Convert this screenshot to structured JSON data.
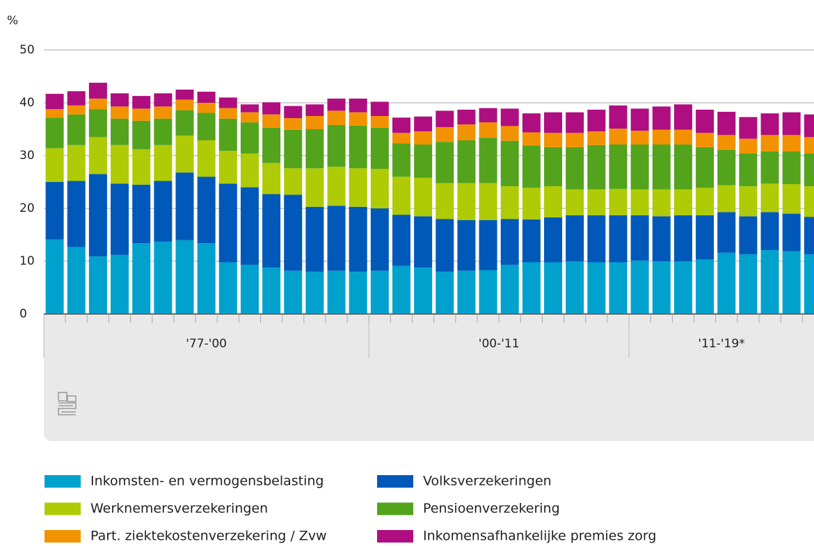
{
  "chart_data": {
    "type": "stacked-bar",
    "y_unit": "%",
    "categories": [
      null,
      null,
      null,
      null,
      null,
      null,
      null,
      null,
      null,
      null,
      null,
      null,
      null,
      null,
      null,
      null,
      null,
      null,
      null,
      null,
      null,
      null,
      null,
      null,
      null,
      null,
      null,
      null,
      null,
      null,
      null,
      null,
      null,
      null,
      null,
      null
    ],
    "groups": [
      {
        "label": "'77-'00",
        "size": 15
      },
      {
        "label": "'00-'11",
        "size": 12
      },
      {
        "label": "'11-'19*",
        "size": 9
      }
    ],
    "ylim": [
      0,
      50
    ],
    "yticks": [
      0,
      10,
      20,
      30,
      40,
      50
    ],
    "grid": true,
    "series": [
      {
        "name": "Inkomsten- en vermogensbelasting",
        "color": "#00a1cd",
        "values": [
          14.1,
          12.7,
          10.9,
          11.2,
          13.4,
          13.7,
          14.0,
          13.4,
          9.8,
          9.3,
          8.8,
          8.2,
          8.0,
          8.2,
          8.0,
          8.2,
          9.1,
          8.8,
          8.0,
          8.2,
          8.3,
          9.3,
          9.8,
          9.8,
          10.0,
          9.8,
          9.8,
          10.1,
          10.0,
          10.0,
          10.3,
          11.6,
          11.3,
          12.1,
          11.9,
          11.3
        ]
      },
      {
        "name": "Volksverzekeringen",
        "color": "#0058b8",
        "values": [
          10.9,
          12.5,
          15.6,
          13.5,
          11.1,
          11.5,
          12.8,
          12.6,
          14.9,
          14.7,
          13.9,
          14.4,
          12.3,
          12.3,
          12.3,
          11.8,
          9.7,
          9.7,
          10.0,
          9.6,
          9.5,
          8.7,
          8.1,
          8.5,
          8.7,
          8.9,
          8.9,
          8.6,
          8.5,
          8.7,
          8.4,
          7.7,
          7.2,
          7.2,
          7.1,
          7.1
        ]
      },
      {
        "name": "Werknemersverzekeringen",
        "color": "#afcb05",
        "values": [
          6.4,
          6.8,
          7.0,
          7.3,
          6.7,
          6.8,
          7.0,
          6.9,
          6.2,
          6.4,
          5.9,
          5.0,
          7.3,
          7.4,
          7.3,
          7.5,
          7.2,
          7.3,
          6.8,
          7.0,
          7.0,
          6.2,
          6.0,
          5.9,
          4.9,
          4.9,
          5.0,
          4.9,
          5.1,
          4.9,
          5.2,
          5.1,
          5.7,
          5.4,
          5.6,
          5.8
        ]
      },
      {
        "name": "Pensioenverzekering",
        "color": "#53a31d",
        "values": [
          5.8,
          5.8,
          5.3,
          5.0,
          5.4,
          5.0,
          4.8,
          5.2,
          6.1,
          5.9,
          6.7,
          7.3,
          7.4,
          7.9,
          8.1,
          7.8,
          6.3,
          6.3,
          7.8,
          8.1,
          8.6,
          8.6,
          8.0,
          7.4,
          8.0,
          8.4,
          8.4,
          8.5,
          8.5,
          8.5,
          7.7,
          6.7,
          6.2,
          6.1,
          6.2,
          6.2
        ]
      },
      {
        "name": "Part. ziektekostenverzekering / Zvw",
        "color": "#f39200",
        "values": [
          1.6,
          1.7,
          2.0,
          2.3,
          2.3,
          2.3,
          2.0,
          1.9,
          2.0,
          1.9,
          2.5,
          2.2,
          2.5,
          2.7,
          2.5,
          2.2,
          2.0,
          2.5,
          2.8,
          3.0,
          2.9,
          2.8,
          2.5,
          2.7,
          2.7,
          2.6,
          3.0,
          2.6,
          2.8,
          2.8,
          2.7,
          2.8,
          2.8,
          3.1,
          3.1,
          3.1
        ]
      },
      {
        "name": "Inkomensafhankelijke premies zorg",
        "color": "#af0e80",
        "values": [
          2.9,
          2.7,
          3.0,
          2.5,
          2.4,
          2.5,
          1.9,
          2.1,
          2.0,
          1.5,
          2.3,
          2.3,
          2.2,
          2.3,
          2.6,
          2.7,
          2.9,
          2.8,
          3.1,
          2.8,
          2.7,
          3.3,
          3.6,
          3.9,
          3.9,
          4.1,
          4.4,
          4.2,
          4.4,
          4.8,
          4.4,
          4.4,
          4.1,
          4.1,
          4.3,
          4.3
        ]
      }
    ]
  }
}
